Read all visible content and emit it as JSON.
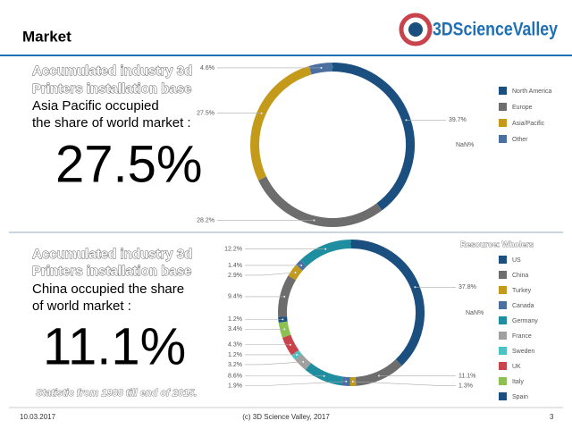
{
  "header": {
    "title": "Market",
    "logo": "3DScienceValley"
  },
  "panels": [
    {
      "lines": [
        "Accumulated industry 3d",
        "Printers installation base",
        "Asia Pacific occupied",
        "the share of world market :"
      ],
      "highlight": "27.5%"
    },
    {
      "lines": [
        "Accumulated industry 3d",
        "Printers installation base",
        "China occupied the share",
        "of world market :"
      ],
      "highlight": "11.1%",
      "note": "Statistic from 1988 till end of 2015."
    }
  ],
  "chart_data": [
    {
      "type": "pie",
      "categories": [
        "North America",
        "Europe",
        "Asia/Pacific",
        "Other",
        null
      ],
      "values": [
        39.7,
        28.2,
        27.5,
        4.6,
        null
      ],
      "value_labels": [
        "39.7%",
        "28.2%",
        "27.5%",
        "4.6%",
        "NaN%"
      ],
      "colors": [
        "#1a4f7f",
        "#6d6d6d",
        "#c49a1a",
        "#4a6fa0",
        "#1f8ea0"
      ]
    },
    {
      "type": "pie",
      "legend_title": "Resource: Wholers",
      "categories": [
        "US",
        "China",
        "Turkey",
        "Canada",
        "Germany",
        "France",
        "Sweden",
        "UK",
        "Italy",
        "Spain",
        null,
        null,
        null,
        null,
        null
      ],
      "values": [
        37.8,
        11.1,
        1.3,
        1.9,
        8.6,
        3.2,
        1.2,
        4.3,
        3.4,
        1.2,
        9.4,
        2.9,
        1.4,
        12.2,
        null
      ],
      "value_labels": [
        "37.8%",
        "11.1%",
        "1.3%",
        "1.9%",
        "8.6%",
        "3.2%",
        "1.2%",
        "4.3%",
        "3.4%",
        "1.2%",
        "9.4%",
        "2.9%",
        "1.4%",
        "12.2%",
        "NaN%"
      ],
      "colors": [
        "#1a4f7f",
        "#6d6d6d",
        "#c49a1a",
        "#4a6fa0",
        "#1f8ea0",
        "#a0a0a0",
        "#4cc3c3",
        "#c9434c",
        "#8cc152",
        "#1a4f7f",
        "#6d6d6d",
        "#c49a1a",
        "#4a6fa0",
        "#1f8ea0",
        "#1a4f7f"
      ]
    }
  ],
  "footer": {
    "date": "10.03.2017",
    "credit": "(c) 3D Science Valley, 2017",
    "page": "3"
  }
}
